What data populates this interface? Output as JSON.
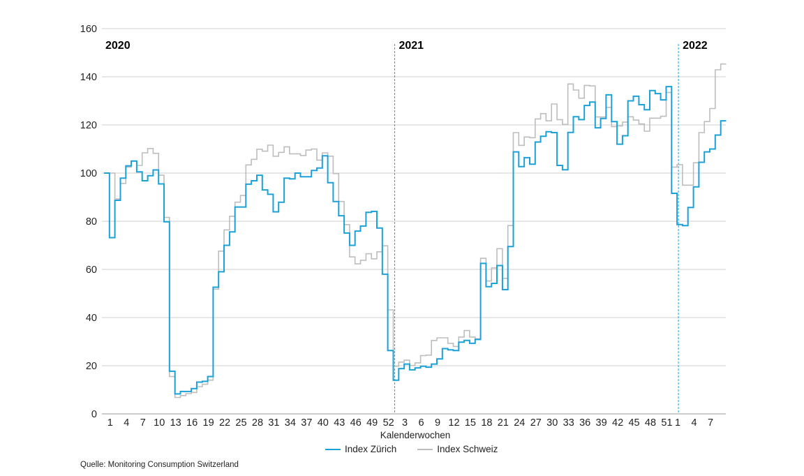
{
  "chart_data": {
    "type": "line",
    "step": true,
    "xlabel": "Kalenderwochen",
    "ylabel": "",
    "ylim": [
      0,
      160
    ],
    "yticks": [
      0,
      20,
      40,
      60,
      80,
      100,
      120,
      140,
      160
    ],
    "grid": true,
    "legend_position": "bottom",
    "years": [
      {
        "label": "2020",
        "start_index": 1,
        "divider": false
      },
      {
        "label": "2021",
        "start_index": 53,
        "divider": true
      },
      {
        "label": "2022",
        "start_index": 105,
        "divider": true
      }
    ],
    "xticks": [
      {
        "index": 1,
        "label": "1"
      },
      {
        "index": 4,
        "label": "4"
      },
      {
        "index": 7,
        "label": "7"
      },
      {
        "index": 10,
        "label": "10"
      },
      {
        "index": 13,
        "label": "13"
      },
      {
        "index": 16,
        "label": "16"
      },
      {
        "index": 19,
        "label": "19"
      },
      {
        "index": 22,
        "label": "22"
      },
      {
        "index": 25,
        "label": "25"
      },
      {
        "index": 28,
        "label": "28"
      },
      {
        "index": 31,
        "label": "31"
      },
      {
        "index": 34,
        "label": "34"
      },
      {
        "index": 37,
        "label": "37"
      },
      {
        "index": 40,
        "label": "40"
      },
      {
        "index": 43,
        "label": "43"
      },
      {
        "index": 46,
        "label": "46"
      },
      {
        "index": 49,
        "label": "49"
      },
      {
        "index": 52,
        "label": "52"
      },
      {
        "index": 55,
        "label": "3"
      },
      {
        "index": 58,
        "label": "6"
      },
      {
        "index": 61,
        "label": "9"
      },
      {
        "index": 64,
        "label": "12"
      },
      {
        "index": 67,
        "label": "15"
      },
      {
        "index": 70,
        "label": "18"
      },
      {
        "index": 73,
        "label": "21"
      },
      {
        "index": 76,
        "label": "24"
      },
      {
        "index": 79,
        "label": "27"
      },
      {
        "index": 82,
        "label": "30"
      },
      {
        "index": 85,
        "label": "33"
      },
      {
        "index": 88,
        "label": "36"
      },
      {
        "index": 91,
        "label": "39"
      },
      {
        "index": 94,
        "label": "42"
      },
      {
        "index": 97,
        "label": "45"
      },
      {
        "index": 100,
        "label": "48"
      },
      {
        "index": 103,
        "label": "51"
      },
      {
        "index": 105,
        "label": "1"
      },
      {
        "index": 108,
        "label": "4"
      },
      {
        "index": 111,
        "label": "7"
      }
    ],
    "series": [
      {
        "name": "Index Zürich",
        "color": "#1ba1d8",
        "values": [
          100,
          73.2,
          88.7,
          97.9,
          103,
          105,
          100.5,
          96.8,
          98.9,
          101.3,
          95.5,
          79.8,
          17.7,
          8.3,
          9.3,
          9.3,
          10.5,
          13.2,
          13.5,
          15.5,
          52.6,
          59,
          70,
          75.6,
          85.9,
          85.9,
          95.4,
          96.8,
          99.1,
          93,
          91.2,
          83.9,
          87.9,
          97.9,
          97.6,
          100,
          98.5,
          98.5,
          101.1,
          102.1,
          107.2,
          96,
          88.2,
          82.3,
          75.1,
          70,
          75.9,
          78,
          83.7,
          84.1,
          77.2,
          58,
          26.3,
          14,
          18.8,
          20.7,
          18.3,
          19.1,
          19.8,
          19.4,
          20.7,
          22.8,
          27.1,
          26.6,
          26.3,
          29.8,
          30.5,
          29.3,
          30.9,
          62.5,
          52.8,
          54.2,
          61.6,
          51.6,
          69.5,
          108.8,
          102.7,
          106.4,
          103.7,
          112.9,
          115.3,
          117.2,
          116.8,
          103.2,
          101.4,
          116.9,
          123.4,
          122.2,
          128.1,
          129.5,
          118.8,
          122.7,
          132.5,
          121.4,
          112,
          115.5,
          130,
          131.9,
          128.4,
          126.3,
          134.3,
          133,
          130.4,
          135.9,
          91.6,
          78.6,
          78.2,
          85.7,
          94.3,
          104.5,
          108.8,
          110,
          115.8,
          121.7
        ]
      },
      {
        "name": "Index Schweiz",
        "color": "#bdbdbd",
        "values": [
          100,
          100,
          89.3,
          95.7,
          102.5,
          105,
          103.2,
          108.4,
          110.2,
          108.2,
          99.1,
          81.6,
          15.5,
          6.8,
          7.6,
          8.4,
          8.9,
          11.3,
          12.3,
          14,
          51.8,
          67.6,
          76.4,
          82.1,
          87.9,
          90.7,
          103.4,
          105.7,
          109.9,
          109.1,
          111.6,
          107,
          108.6,
          110.9,
          108,
          108,
          107.3,
          109.6,
          110,
          105.4,
          108.4,
          107,
          99.8,
          88.2,
          78.6,
          65.2,
          62.3,
          63.8,
          66.5,
          64.4,
          67.3,
          69.8,
          43.2,
          19.8,
          21.5,
          22.3,
          20.1,
          21.2,
          24.2,
          24.4,
          30.5,
          31.6,
          31.6,
          29.3,
          28,
          31.9,
          34.6,
          31.9,
          31.2,
          64.6,
          55.2,
          60.6,
          68.6,
          56.3,
          78.2,
          116.8,
          111.5,
          115,
          114.7,
          122.5,
          124.7,
          121.7,
          128.7,
          122.2,
          120.2,
          137,
          134.5,
          131.1,
          136.4,
          136.2,
          123.3,
          123.3,
          127.3,
          119.3,
          119.6,
          121.2,
          123.4,
          122,
          120.4,
          117.4,
          122.8,
          122.8,
          123.6,
          133.5,
          102.5,
          103.5,
          95,
          95,
          104.3,
          116.8,
          121.4,
          126.8,
          142.9,
          145.3
        ]
      }
    ]
  },
  "source": "Quelle:  Monitoring Consumption Switzerland"
}
